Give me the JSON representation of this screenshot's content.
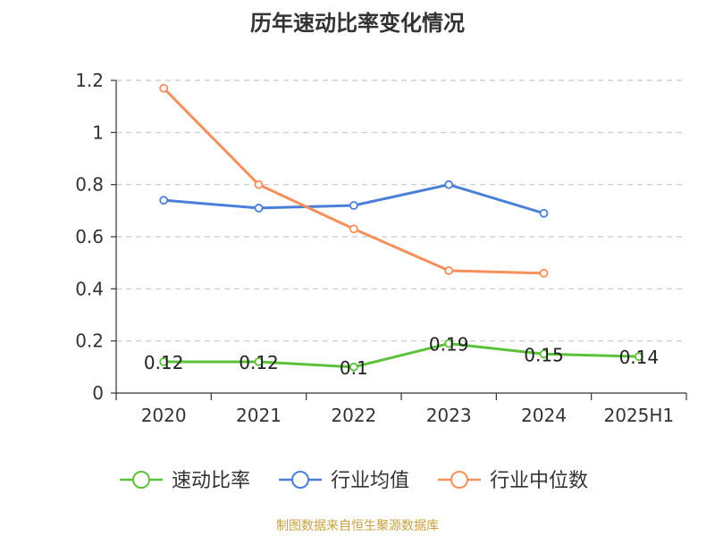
{
  "chart_data": {
    "type": "line",
    "title": "历年速动比率变化情况",
    "categories": [
      "2020",
      "2021",
      "2022",
      "2023",
      "2024",
      "2025H1"
    ],
    "ylim": [
      0,
      1.2
    ],
    "yticks": [
      "0",
      "0.2",
      "0.4",
      "0.6",
      "0.8",
      "1",
      "1.2"
    ],
    "grid": true,
    "legend_position": "bottom",
    "series": [
      {
        "name": "速动比率",
        "color": "#5cc13a",
        "values": [
          0.12,
          0.12,
          0.1,
          0.19,
          0.15,
          0.14
        ],
        "labels": [
          "0.12",
          "0.12",
          "0.1",
          "0.19",
          "0.15",
          "0.14"
        ]
      },
      {
        "name": "行业均值",
        "color": "#4a7fd8",
        "values": [
          0.74,
          0.71,
          0.72,
          0.8,
          0.69,
          null
        ]
      },
      {
        "name": "行业中位数",
        "color": "#f5905a",
        "values": [
          1.17,
          0.8,
          0.63,
          0.47,
          0.46,
          null
        ]
      }
    ]
  },
  "source": {
    "text": "制图数据来自恒生聚源数据库",
    "color": "#c8a040"
  }
}
